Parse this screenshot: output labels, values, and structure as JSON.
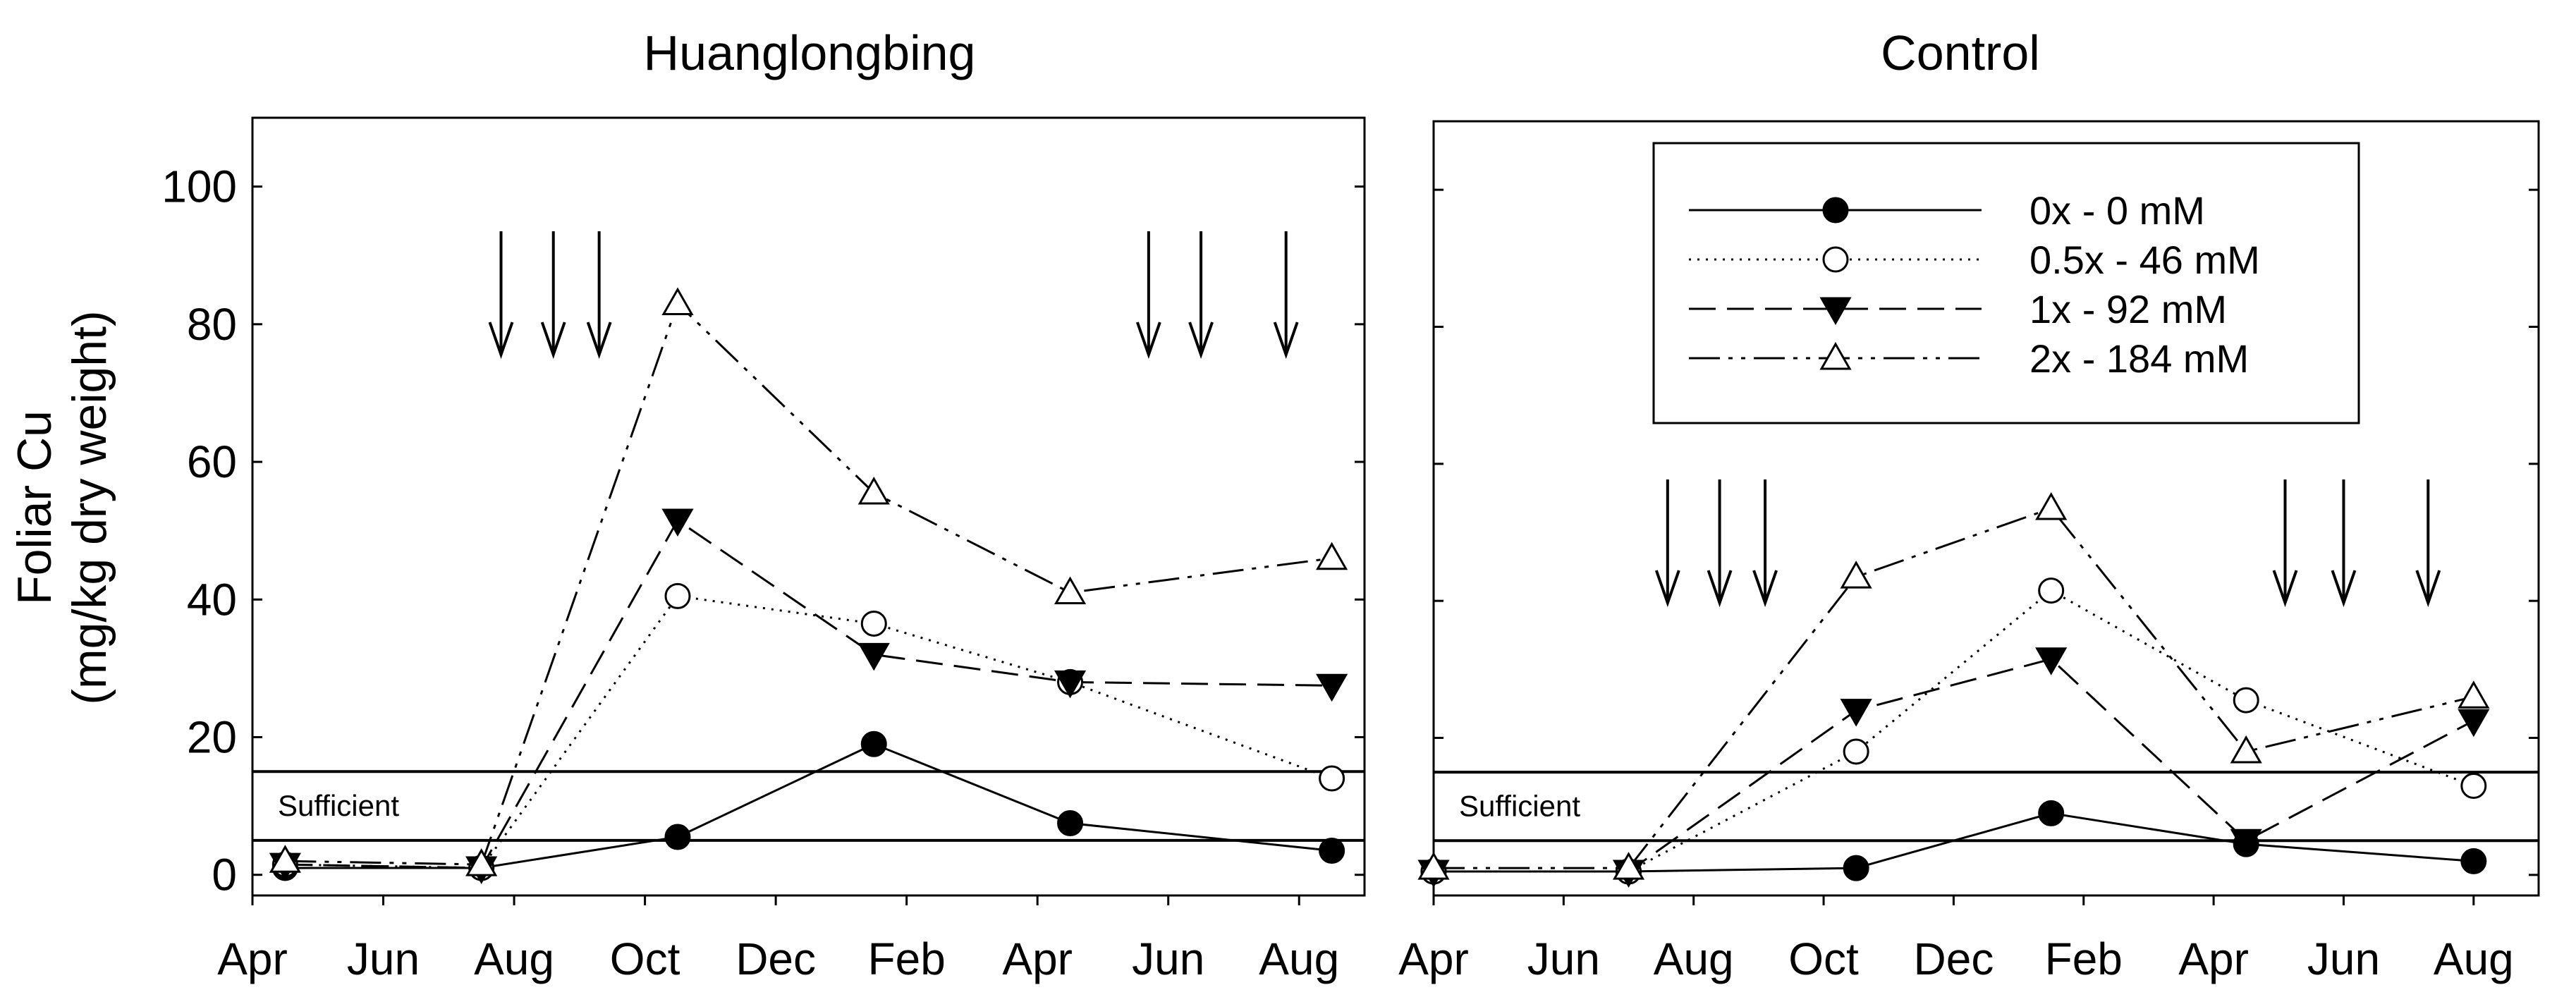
{
  "chart_data": {
    "type": "line",
    "ylabel_line1": "Foliar Cu",
    "ylabel_line2": "(mg/kg dry weight)",
    "ylim": [
      -3,
      110
    ],
    "yticks": [
      0,
      20,
      40,
      60,
      80,
      100
    ],
    "ytick_labels": [
      "0",
      "20",
      "40",
      "60",
      "80",
      "100"
    ],
    "xlim": [
      0,
      17
    ],
    "xtick_positions": [
      0,
      2,
      4,
      6,
      8,
      10,
      12,
      14,
      16
    ],
    "xtick_labels": [
      "Apr",
      "Jun",
      "Aug",
      "Oct",
      "Dec",
      "Feb",
      "Apr",
      "Jun",
      "Aug"
    ],
    "sufficient_label": "Sufficient",
    "sufficient_range": [
      5,
      15
    ],
    "colors": {
      "line": "#000000",
      "background": "#ffffff"
    },
    "legend": {
      "placement": "top-right of Control panel",
      "entries": [
        {
          "key": "s0",
          "label": "0x - 0 mM",
          "marker": "filled-circle",
          "dash": "solid"
        },
        {
          "key": "s05",
          "label": "0.5x - 46 mM",
          "marker": "open-circle",
          "dash": "dotted"
        },
        {
          "key": "s1",
          "label": "1x - 92 mM",
          "marker": "filled-triangle-down",
          "dash": "dashed"
        },
        {
          "key": "s2",
          "label": "2x - 184 mM",
          "marker": "open-triangle-up",
          "dash": "dash-dot-dot"
        }
      ]
    },
    "panels": [
      {
        "title": "Huanglongbing",
        "arrows_x": [
          3.8,
          4.6,
          5.3,
          13.7,
          14.5,
          15.8
        ],
        "series": [
          {
            "key": "s0",
            "name": "0x - 0 mM",
            "x": [
              0.5,
              3.5,
              6.5,
              9.5,
              12.5,
              16.5
            ],
            "y": [
              1,
              1,
              5.5,
              19,
              7.5,
              3.5
            ]
          },
          {
            "key": "s05",
            "name": "0.5x - 46 mM",
            "x": [
              0.5,
              3.5,
              6.5,
              9.5,
              12.5,
              16.5
            ],
            "y": [
              1.5,
              1,
              40.5,
              36.5,
              28,
              14
            ]
          },
          {
            "key": "s1",
            "name": "1x - 92 mM",
            "x": [
              0.5,
              3.5,
              6.5,
              9.5,
              12.5,
              16.5
            ],
            "y": [
              1.5,
              1,
              51.5,
              32,
              28,
              27.5
            ]
          },
          {
            "key": "s2",
            "name": "2x - 184 mM",
            "x": [
              0.5,
              3.5,
              6.5,
              9.5,
              12.5,
              16.5
            ],
            "y": [
              2,
              1.5,
              83,
              55.5,
              41,
              46
            ]
          }
        ]
      },
      {
        "title": "Control",
        "arrows_x": [
          3.6,
          4.4,
          5.1,
          13.1,
          14.0,
          15.3
        ],
        "series": [
          {
            "key": "s0",
            "name": "0x - 0 mM",
            "x": [
              0,
              3,
              6.5,
              9.5,
              12.5,
              16
            ],
            "y": [
              0.5,
              0.5,
              1,
              9,
              4.5,
              2
            ]
          },
          {
            "key": "s05",
            "name": "0.5x - 46 mM",
            "x": [
              0,
              3,
              6.5,
              9.5,
              12.5,
              16
            ],
            "y": [
              0.5,
              0.5,
              18,
              41.5,
              25.5,
              13
            ]
          },
          {
            "key": "s1",
            "name": "1x - 92 mM",
            "x": [
              0,
              3,
              6.5,
              9.5,
              12.5,
              16
            ],
            "y": [
              0.5,
              0.5,
              24,
              31.5,
              5,
              22.5
            ]
          },
          {
            "key": "s2",
            "name": "2x - 184 mM",
            "x": [
              0,
              3,
              6.5,
              9.5,
              12.5,
              16
            ],
            "y": [
              1,
              1,
              43.5,
              53.5,
              18,
              26
            ]
          }
        ]
      }
    ]
  }
}
